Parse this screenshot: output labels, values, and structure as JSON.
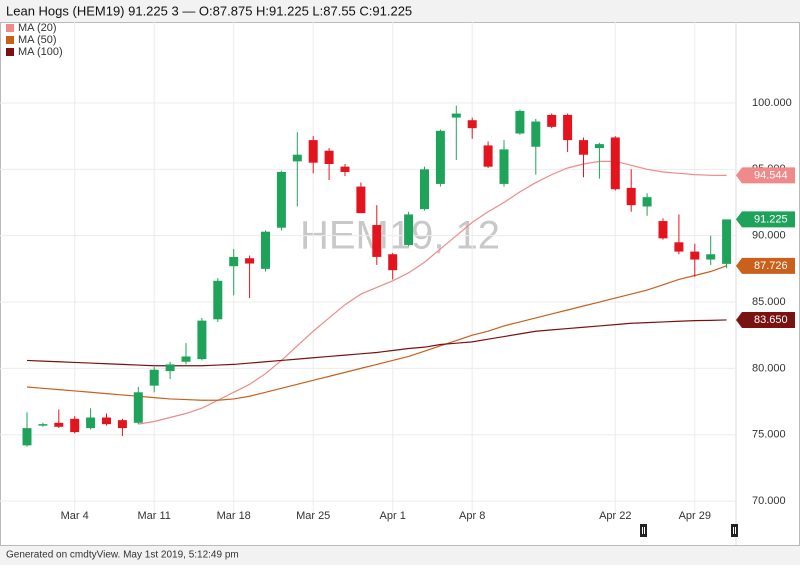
{
  "chart_data": {
    "type": "candlestick",
    "title": "Lean Hogs (HEM19) 91.225 3 — O:87.875 H:91.225 L:87.55 C:91.225",
    "watermark": "HEM19, 12",
    "footer": "Generated on cmdtyView. May 1st 2019, 5:12:49 pm",
    "categories": [
      null,
      null,
      null,
      "Mar 4",
      null,
      null,
      null,
      null,
      "Mar 11",
      null,
      null,
      null,
      null,
      "Mar 18",
      null,
      null,
      null,
      null,
      "Mar 25",
      null,
      null,
      null,
      null,
      "Apr 1",
      null,
      null,
      null,
      null,
      "Apr 8",
      null,
      null,
      null,
      null,
      null,
      null,
      null,
      null,
      "Apr 22",
      null,
      null,
      null,
      null,
      "Apr 29",
      null,
      null
    ],
    "candles": {
      "up_color": "#1fa35b",
      "down_color": "#e3141d",
      "open": [
        74.2,
        75.7,
        75.9,
        76.2,
        75.5,
        76.3,
        76.1,
        75.9,
        78.7,
        79.8,
        80.5,
        80.7,
        83.7,
        87.7,
        88.3,
        87.5,
        90.6,
        95.6,
        97.2,
        96.4,
        95.2,
        93.7,
        90.8,
        88.6,
        89.3,
        92.0,
        93.9,
        98.9,
        98.7,
        96.8,
        93.9,
        97.7,
        96.7,
        99.1,
        99.1,
        97.2,
        96.6,
        97.4,
        93.6,
        92.2,
        91.1,
        89.5,
        88.8,
        88.2,
        87.875
      ],
      "high": [
        76.7,
        75.9,
        76.9,
        76.4,
        77.0,
        76.6,
        76.2,
        78.6,
        80.1,
        80.5,
        81.9,
        83.8,
        86.8,
        89.0,
        88.5,
        90.4,
        94.9,
        97.8,
        97.5,
        96.6,
        95.4,
        94.0,
        92.3,
        88.7,
        91.8,
        95.2,
        98.0,
        99.8,
        98.9,
        97.1,
        97.2,
        99.5,
        98.8,
        99.2,
        99.2,
        97.4,
        97.0,
        97.5,
        95.0,
        93.2,
        91.3,
        91.6,
        89.4,
        90.0,
        91.225
      ],
      "low": [
        74.1,
        75.6,
        75.5,
        75.1,
        75.4,
        75.7,
        74.9,
        75.8,
        78.2,
        79.2,
        80.3,
        80.6,
        83.5,
        85.5,
        85.3,
        87.3,
        90.4,
        92.2,
        94.7,
        94.2,
        94.5,
        91.7,
        87.8,
        86.7,
        89.2,
        91.9,
        93.7,
        95.7,
        97.3,
        95.1,
        93.7,
        97.6,
        94.6,
        98.1,
        96.3,
        94.4,
        94.3,
        93.4,
        91.8,
        91.5,
        89.7,
        88.6,
        86.9,
        87.8,
        87.55
      ],
      "close": [
        75.5,
        75.8,
        75.6,
        75.2,
        76.3,
        75.8,
        75.5,
        78.2,
        79.9,
        80.3,
        80.9,
        83.6,
        86.6,
        88.4,
        87.9,
        90.3,
        94.8,
        96.1,
        95.5,
        95.4,
        94.8,
        91.7,
        88.4,
        87.4,
        91.6,
        95.0,
        97.9,
        99.2,
        98.1,
        95.2,
        96.5,
        99.4,
        98.6,
        98.2,
        97.2,
        96.1,
        96.9,
        93.5,
        92.3,
        92.9,
        89.8,
        88.8,
        88.2,
        88.6,
        91.225
      ]
    },
    "series": [
      {
        "name": "MA (20)",
        "color": "#f08a8a",
        "values": [
          null,
          null,
          null,
          null,
          null,
          null,
          null,
          75.8,
          76.0,
          76.3,
          76.6,
          77.0,
          77.6,
          78.2,
          78.8,
          79.6,
          80.6,
          81.7,
          82.8,
          83.8,
          84.8,
          85.6,
          86.1,
          86.6,
          87.2,
          88.0,
          89.0,
          90.0,
          91.0,
          91.8,
          92.5,
          93.3,
          94.0,
          94.6,
          95.1,
          95.4,
          95.6,
          95.6,
          95.3,
          95.0,
          94.8,
          94.7,
          94.6,
          94.55,
          94.544
        ],
        "value_labels": [
          null,
          null,
          null,
          null,
          null,
          null,
          null,
          null,
          null,
          null,
          null,
          null,
          null,
          null,
          null,
          null,
          null,
          null,
          null,
          null,
          null,
          null,
          null,
          null,
          null,
          null,
          null,
          null,
          null,
          null,
          null,
          null,
          null,
          null,
          null,
          null,
          null,
          null,
          null,
          null,
          null,
          null,
          null,
          null,
          "94.544"
        ]
      },
      {
        "name": "MA (50)",
        "color": "#c9601c",
        "values": [
          78.6,
          78.5,
          78.4,
          78.3,
          78.2,
          78.1,
          78.0,
          77.9,
          77.8,
          77.7,
          77.65,
          77.6,
          77.6,
          77.7,
          77.9,
          78.2,
          78.5,
          78.8,
          79.1,
          79.4,
          79.7,
          80.0,
          80.3,
          80.6,
          80.9,
          81.3,
          81.7,
          82.1,
          82.5,
          82.8,
          83.2,
          83.5,
          83.8,
          84.1,
          84.4,
          84.7,
          85.0,
          85.3,
          85.6,
          85.9,
          86.3,
          86.7,
          87.0,
          87.3,
          87.726
        ],
        "value_labels": [
          null,
          null,
          null,
          null,
          null,
          null,
          null,
          null,
          null,
          null,
          null,
          null,
          null,
          null,
          null,
          null,
          null,
          null,
          null,
          null,
          null,
          null,
          null,
          null,
          null,
          null,
          null,
          null,
          null,
          null,
          null,
          null,
          null,
          null,
          null,
          null,
          null,
          null,
          null,
          null,
          null,
          null,
          null,
          null,
          "87.726"
        ]
      },
      {
        "name": "MA (100)",
        "color": "#7a1212",
        "values": [
          80.6,
          80.55,
          80.5,
          80.45,
          80.4,
          80.35,
          80.3,
          80.25,
          80.2,
          80.2,
          80.2,
          80.2,
          80.25,
          80.3,
          80.4,
          80.5,
          80.6,
          80.7,
          80.8,
          80.9,
          81.0,
          81.1,
          81.2,
          81.35,
          81.5,
          81.6,
          81.8,
          81.9,
          82.0,
          82.2,
          82.4,
          82.6,
          82.8,
          82.9,
          83.0,
          83.1,
          83.2,
          83.3,
          83.4,
          83.45,
          83.5,
          83.55,
          83.6,
          83.62,
          83.65
        ],
        "value_labels": [
          null,
          null,
          null,
          null,
          null,
          null,
          null,
          null,
          null,
          null,
          null,
          null,
          null,
          null,
          null,
          null,
          null,
          null,
          null,
          null,
          null,
          null,
          null,
          null,
          null,
          null,
          null,
          null,
          null,
          null,
          null,
          null,
          null,
          null,
          null,
          null,
          null,
          null,
          null,
          null,
          null,
          null,
          null,
          null,
          "83.650"
        ]
      }
    ],
    "ylim": [
      68.2,
      106.1
    ],
    "yticks": [
      {
        "value": 70,
        "label": "70.000"
      },
      {
        "value": 75,
        "label": "75.000"
      },
      {
        "value": 80,
        "label": "80.000"
      },
      {
        "value": 85,
        "label": "85.000"
      },
      {
        "value": 90,
        "label": "90.000"
      },
      {
        "value": 95,
        "label": "95.000"
      },
      {
        "value": 100,
        "label": "100.000"
      }
    ],
    "grid": true,
    "legend": "top-left"
  }
}
